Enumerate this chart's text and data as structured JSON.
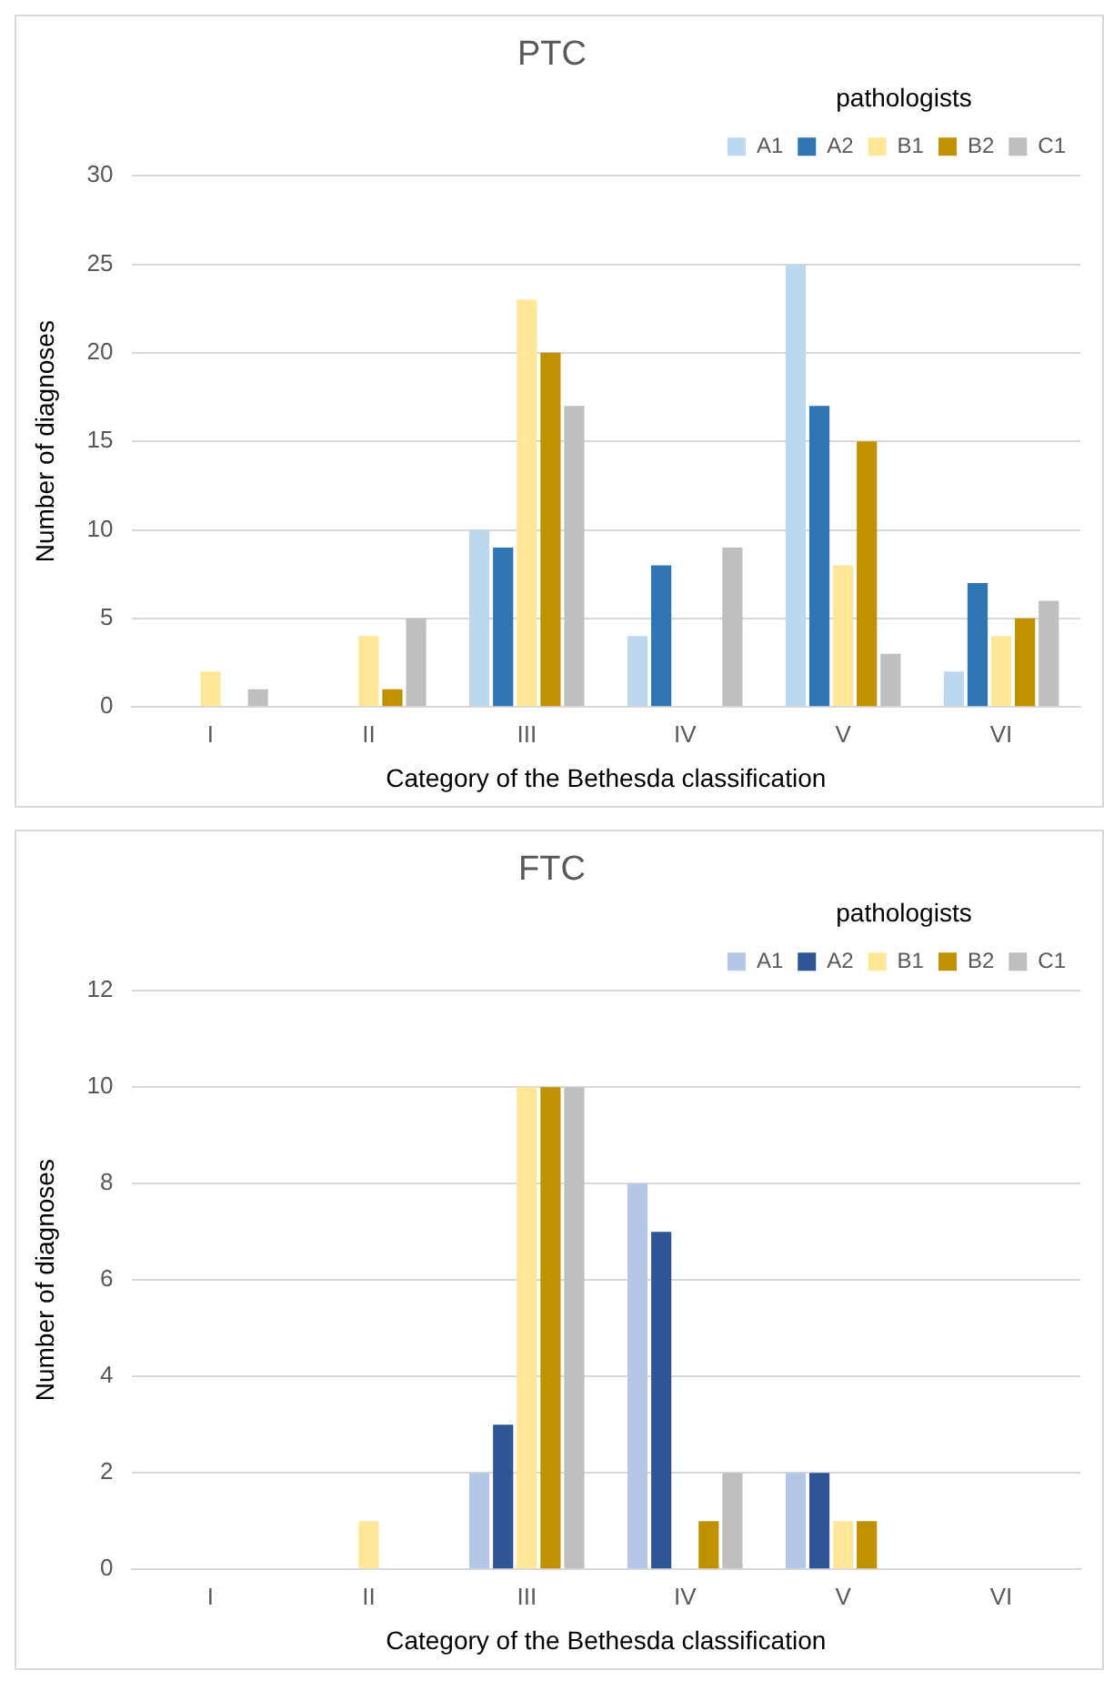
{
  "chart_data": [
    {
      "type": "bar",
      "title": "PTC",
      "xlabel": "Category of the Bethesda classification",
      "ylabel": "Number of diagnoses",
      "categories": [
        "I",
        "II",
        "III",
        "IV",
        "V",
        "VI"
      ],
      "legend_title": "pathologists",
      "legend": "top right",
      "grid": "y",
      "ylim": [
        0,
        30
      ],
      "yticks": [
        0,
        5,
        10,
        15,
        20,
        25,
        30
      ],
      "series": [
        {
          "name": "A1",
          "color": "#bdd7ee",
          "values": [
            0,
            0,
            10,
            4,
            25,
            2
          ]
        },
        {
          "name": "A2",
          "color": "#2e75b6",
          "values": [
            0,
            0,
            9,
            8,
            17,
            7
          ]
        },
        {
          "name": "B1",
          "color": "#ffe699",
          "values": [
            2,
            4,
            23,
            0,
            8,
            4
          ]
        },
        {
          "name": "B2",
          "color": "#bf9000",
          "values": [
            0,
            1,
            20,
            0,
            15,
            5
          ]
        },
        {
          "name": "C1",
          "color": "#bfbfbf",
          "values": [
            1,
            5,
            17,
            9,
            3,
            6
          ]
        }
      ]
    },
    {
      "type": "bar",
      "title": "FTC",
      "xlabel": "Category of the Bethesda classification",
      "ylabel": "Number of diagnoses",
      "categories": [
        "I",
        "II",
        "III",
        "IV",
        "V",
        "VI"
      ],
      "legend_title": "pathologists",
      "legend": "top right",
      "grid": "y",
      "ylim": [
        0,
        12
      ],
      "yticks": [
        0,
        2,
        4,
        6,
        8,
        10,
        12
      ],
      "series": [
        {
          "name": "A1",
          "color": "#b4c7e7",
          "values": [
            0,
            0,
            2,
            8,
            2,
            0
          ]
        },
        {
          "name": "A2",
          "color": "#2f5597",
          "values": [
            0,
            0,
            3,
            7,
            2,
            0
          ]
        },
        {
          "name": "B1",
          "color": "#ffe699",
          "values": [
            0,
            1,
            10,
            0,
            1,
            0
          ]
        },
        {
          "name": "B2",
          "color": "#bf9000",
          "values": [
            0,
            0,
            10,
            1,
            1,
            0
          ]
        },
        {
          "name": "C1",
          "color": "#bfbfbf",
          "values": [
            0,
            0,
            10,
            2,
            0,
            0
          ]
        }
      ]
    }
  ]
}
